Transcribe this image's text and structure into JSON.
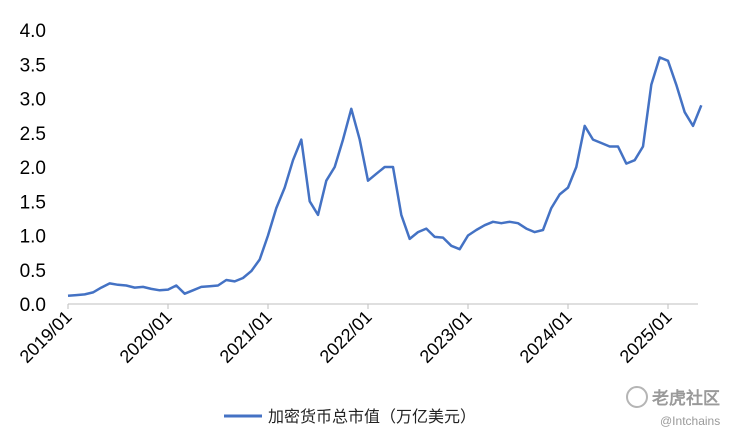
{
  "chart_data": {
    "type": "line",
    "title": "",
    "xlabel": "",
    "ylabel": "",
    "ylim": [
      0,
      4.0
    ],
    "yticks": [
      "0.0",
      "0.5",
      "1.0",
      "1.5",
      "2.0",
      "2.5",
      "3.0",
      "3.5",
      "4.0"
    ],
    "xticks": [
      "2019/01",
      "2020/01",
      "2021/01",
      "2022/01",
      "2023/01",
      "2024/01",
      "2025/01"
    ],
    "grid": false,
    "legend_position": "bottom-center",
    "series": [
      {
        "name": "加密货币总市值（万亿美元）",
        "color": "#4472C4",
        "points": [
          [
            "2019/01",
            0.12
          ],
          [
            "2019/02",
            0.13
          ],
          [
            "2019/03",
            0.14
          ],
          [
            "2019/04",
            0.17
          ],
          [
            "2019/05",
            0.24
          ],
          [
            "2019/06",
            0.3
          ],
          [
            "2019/07",
            0.28
          ],
          [
            "2019/08",
            0.27
          ],
          [
            "2019/09",
            0.24
          ],
          [
            "2019/10",
            0.25
          ],
          [
            "2019/11",
            0.22
          ],
          [
            "2019/12",
            0.2
          ],
          [
            "2020/01",
            0.21
          ],
          [
            "2020/02",
            0.27
          ],
          [
            "2020/03",
            0.15
          ],
          [
            "2020/04",
            0.2
          ],
          [
            "2020/05",
            0.25
          ],
          [
            "2020/06",
            0.26
          ],
          [
            "2020/07",
            0.27
          ],
          [
            "2020/08",
            0.35
          ],
          [
            "2020/09",
            0.33
          ],
          [
            "2020/10",
            0.38
          ],
          [
            "2020/11",
            0.48
          ],
          [
            "2020/12",
            0.65
          ],
          [
            "2021/01",
            1.0
          ],
          [
            "2021/02",
            1.4
          ],
          [
            "2021/03",
            1.7
          ],
          [
            "2021/04",
            2.1
          ],
          [
            "2021/05",
            2.4
          ],
          [
            "2021/06",
            1.5
          ],
          [
            "2021/07",
            1.3
          ],
          [
            "2021/08",
            1.8
          ],
          [
            "2021/09",
            2.0
          ],
          [
            "2021/10",
            2.4
          ],
          [
            "2021/11",
            2.85
          ],
          [
            "2021/12",
            2.4
          ],
          [
            "2022/01",
            1.8
          ],
          [
            "2022/02",
            1.9
          ],
          [
            "2022/03",
            2.0
          ],
          [
            "2022/04",
            2.0
          ],
          [
            "2022/05",
            1.3
          ],
          [
            "2022/06",
            0.95
          ],
          [
            "2022/07",
            1.05
          ],
          [
            "2022/08",
            1.1
          ],
          [
            "2022/09",
            0.98
          ],
          [
            "2022/10",
            0.97
          ],
          [
            "2022/11",
            0.85
          ],
          [
            "2022/12",
            0.8
          ],
          [
            "2023/01",
            1.0
          ],
          [
            "2023/02",
            1.08
          ],
          [
            "2023/03",
            1.15
          ],
          [
            "2023/04",
            1.2
          ],
          [
            "2023/05",
            1.18
          ],
          [
            "2023/06",
            1.2
          ],
          [
            "2023/07",
            1.18
          ],
          [
            "2023/08",
            1.1
          ],
          [
            "2023/09",
            1.05
          ],
          [
            "2023/10",
            1.08
          ],
          [
            "2023/11",
            1.4
          ],
          [
            "2023/12",
            1.6
          ],
          [
            "2024/01",
            1.7
          ],
          [
            "2024/02",
            2.0
          ],
          [
            "2024/03",
            2.6
          ],
          [
            "2024/04",
            2.4
          ],
          [
            "2024/05",
            2.35
          ],
          [
            "2024/06",
            2.3
          ],
          [
            "2024/07",
            2.3
          ],
          [
            "2024/08",
            2.05
          ],
          [
            "2024/09",
            2.1
          ],
          [
            "2024/10",
            2.3
          ],
          [
            "2024/11",
            3.2
          ],
          [
            "2024/12",
            3.6
          ],
          [
            "2025/01",
            3.55
          ],
          [
            "2025/02",
            3.2
          ],
          [
            "2025/03",
            2.8
          ],
          [
            "2025/04",
            2.6
          ],
          [
            "2025/05",
            2.9
          ]
        ]
      }
    ]
  },
  "watermark": {
    "main": "老虎社区",
    "sub": "@Intchains"
  }
}
